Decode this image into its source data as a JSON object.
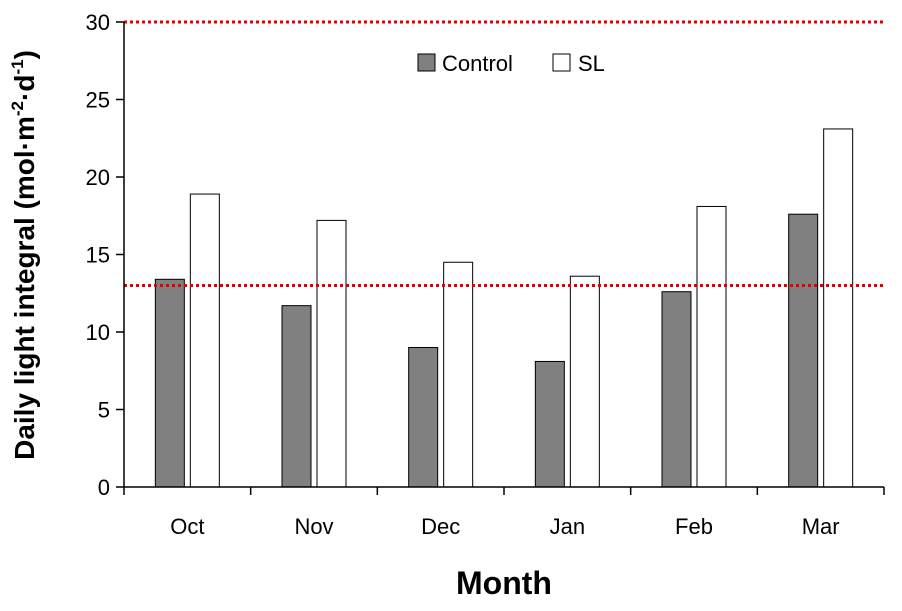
{
  "chart_data": {
    "type": "bar",
    "categories": [
      "Oct",
      "Nov",
      "Dec",
      "Jan",
      "Feb",
      "Mar"
    ],
    "series": [
      {
        "name": "Control",
        "values": [
          13.4,
          11.7,
          9.0,
          8.1,
          12.6,
          17.6
        ],
        "color": "#808080"
      },
      {
        "name": "SL",
        "values": [
          18.9,
          17.2,
          14.5,
          13.6,
          18.1,
          23.1
        ],
        "color": "#ffffff"
      }
    ],
    "title": "",
    "xlabel": "Month",
    "ylabel": "Daily light integral (mol·m",
    "ylabel_sup1": "-2",
    "ylabel_mid": "·d",
    "ylabel_sup2": "-1",
    "ylabel_end": ")",
    "ylim": [
      0,
      30
    ],
    "yticks": [
      "0",
      "5",
      "10",
      "15",
      "20",
      "25",
      "30"
    ],
    "reference_lines": [
      30,
      13
    ],
    "reference_line_color": "#e00000",
    "grid": false,
    "legend_position": "top-center"
  }
}
